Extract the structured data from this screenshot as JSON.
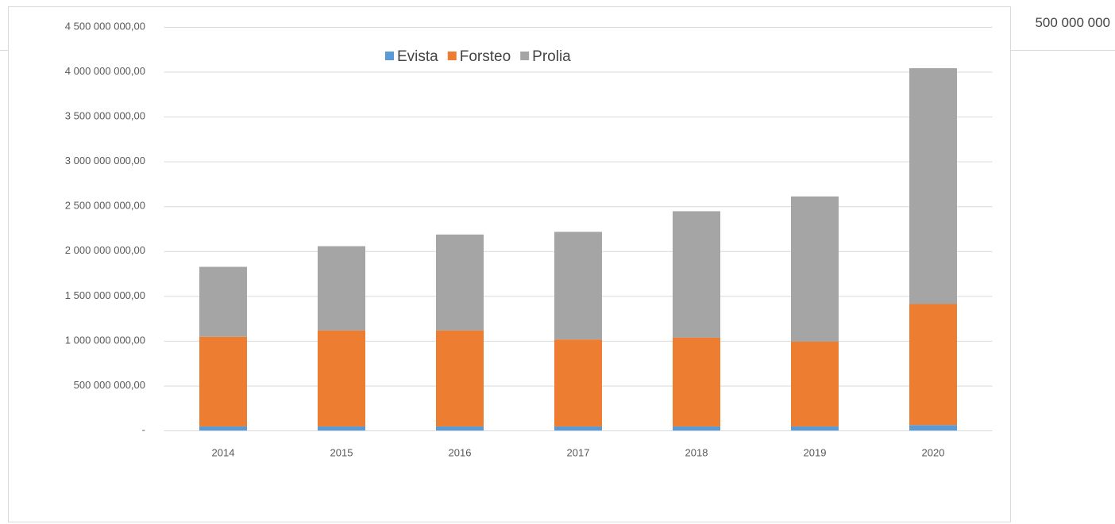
{
  "background_text": "500 000 000",
  "chart_data": {
    "type": "bar",
    "stacked": true,
    "categories": [
      "2014",
      "2015",
      "2016",
      "2017",
      "2018",
      "2019",
      "2020"
    ],
    "series": [
      {
        "name": "Evista",
        "color": "#5b9bd5",
        "values": [
          45000000,
          45000000,
          45000000,
          45000000,
          45000000,
          45000000,
          60000000
        ]
      },
      {
        "name": "Forsteo",
        "color": "#ed7d31",
        "values": [
          1000000000,
          1070000000,
          1070000000,
          970000000,
          990000000,
          945000000,
          1350000000
        ]
      },
      {
        "name": "Prolia",
        "color": "#a5a5a5",
        "values": [
          780000000,
          940000000,
          1070000000,
          1200000000,
          1410000000,
          1620000000,
          2630000000
        ]
      }
    ],
    "ylim": [
      0,
      4500000000
    ],
    "yticks": [
      {
        "value": 0,
        "label": "-"
      },
      {
        "value": 500000000,
        "label": "500 000 000,00"
      },
      {
        "value": 1000000000,
        "label": "1 000 000 000,00"
      },
      {
        "value": 1500000000,
        "label": "1 500 000 000,00"
      },
      {
        "value": 2000000000,
        "label": "2 000 000 000,00"
      },
      {
        "value": 2500000000,
        "label": "2 500 000 000,00"
      },
      {
        "value": 3000000000,
        "label": "3 000 000 000,00"
      },
      {
        "value": 3500000000,
        "label": "3 500 000 000,00"
      },
      {
        "value": 4000000000,
        "label": "4 000 000 000,00"
      },
      {
        "value": 4500000000,
        "label": "4 500 000 000,00"
      }
    ],
    "grid": true,
    "legend": "top"
  }
}
